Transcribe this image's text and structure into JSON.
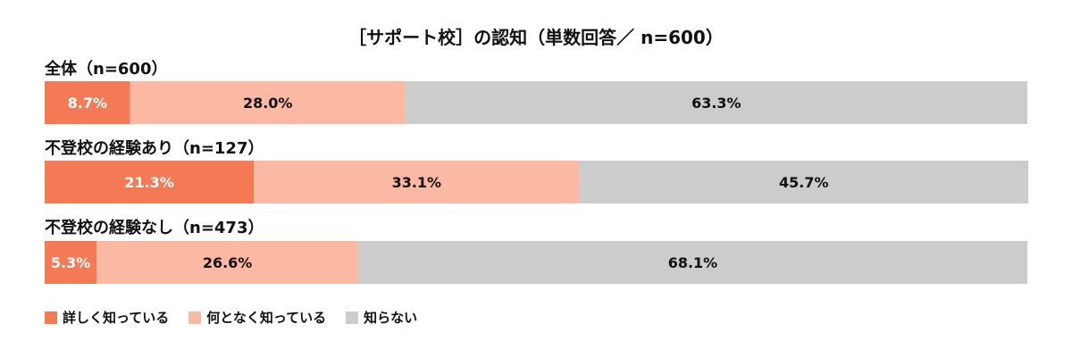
{
  "chart_data": {
    "type": "bar",
    "orientation": "horizontal-stacked-100",
    "title": "［サポート校］の認知（単数回答／ n=600）",
    "categories": [
      "全体（n=600）",
      "不登校の経験あり（n=127）",
      "不登校の経験なし（n=473）"
    ],
    "series": [
      {
        "name": "詳しく知っている",
        "color": "#f47a56",
        "values": [
          8.7,
          21.3,
          5.3
        ],
        "labels": [
          "8.7%",
          "21.3%",
          "5.3%"
        ]
      },
      {
        "name": "何となく知っている",
        "color": "#fbb9a3",
        "values": [
          28.0,
          33.1,
          26.6
        ],
        "labels": [
          "28.0%",
          "33.1%",
          "26.6%"
        ]
      },
      {
        "name": "知らない",
        "color": "#cccccc",
        "values": [
          63.3,
          45.7,
          68.1
        ],
        "labels": [
          "63.3%",
          "45.7%",
          "68.1%"
        ]
      }
    ],
    "label_colors": [
      "#ffffff",
      "#111111",
      "#111111"
    ],
    "xlim": [
      0,
      100
    ],
    "grid": false,
    "legend_position": "bottom-left"
  }
}
